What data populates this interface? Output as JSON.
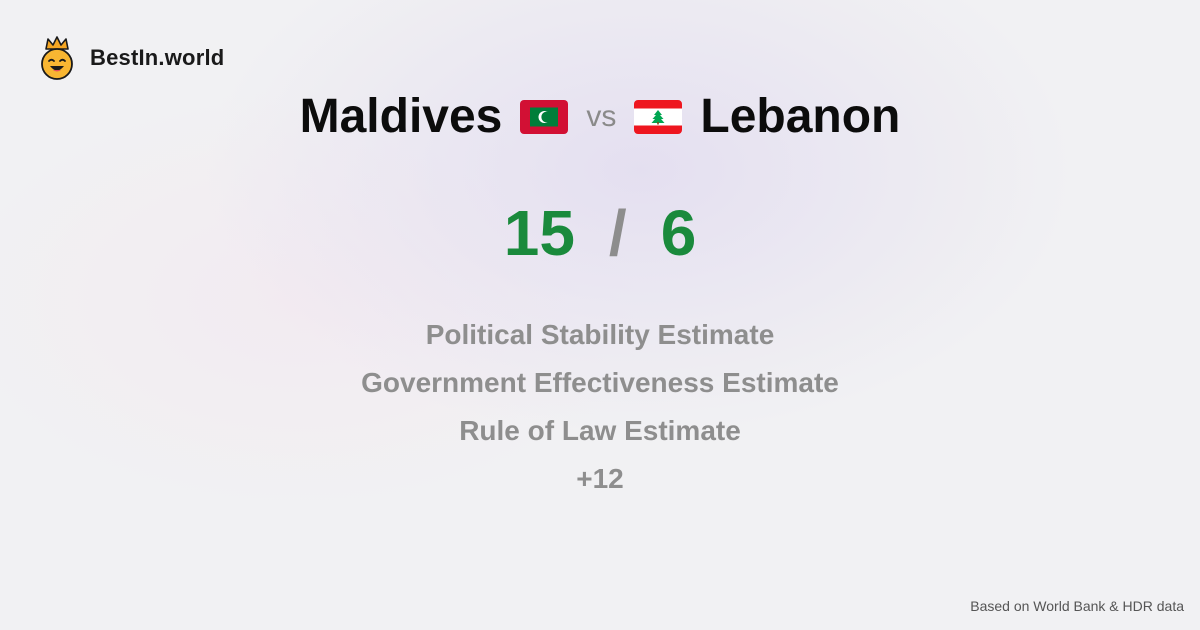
{
  "brand": {
    "name": "BestIn.world",
    "logo_icon": "smiling-face-with-crown-icon"
  },
  "comparison": {
    "left_country": "Maldives",
    "left_flag_icon": "maldives-flag-icon",
    "vs_label": "vs",
    "right_country": "Lebanon",
    "right_flag_icon": "lebanon-flag-icon"
  },
  "score": {
    "left": "15",
    "separator": "/",
    "right": "6",
    "color": "#1a8a3c"
  },
  "metrics": [
    "Political Stability Estimate",
    "Government Effectiveness Estimate",
    "Rule of Law Estimate"
  ],
  "more_label": "+12",
  "footer": {
    "source": "Based on World Bank & HDR data"
  },
  "colors": {
    "maldives_red": "#d21034",
    "maldives_green": "#007e3a",
    "lebanon_red": "#ee161f",
    "lebanon_cedar": "#00a651"
  }
}
